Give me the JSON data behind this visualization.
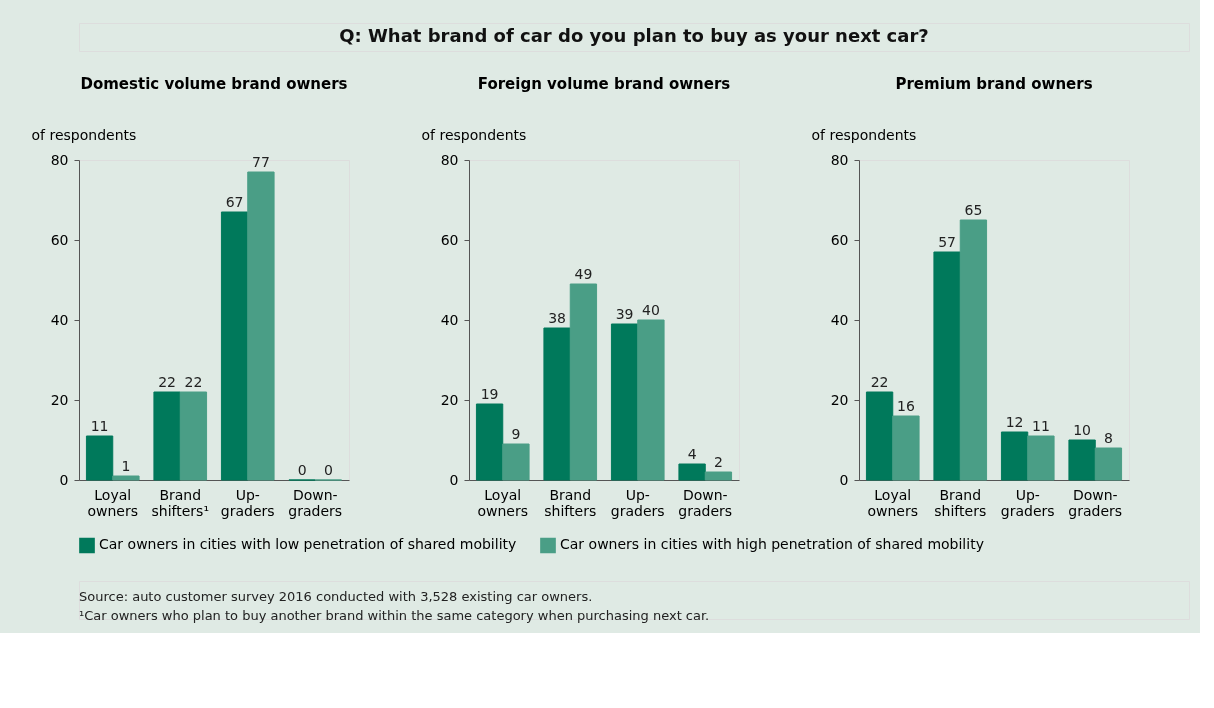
{
  "chart_data": [
    {
      "type": "other",
      "title": "Q: What brand of car do you plan to buy as your next car?"
    },
    {
      "type": "bar",
      "title": "Domestic volume brand owners",
      "ylabel": "of respondents",
      "categories": [
        "Loyal owners",
        "Brand shifters¹",
        "Up-graders",
        "Down-graders"
      ],
      "series": [
        {
          "name": "Car owners in cities with low penetration of shared mobility",
          "color": "#00795b",
          "values": [
            11,
            22,
            67,
            0
          ]
        },
        {
          "name": "Car owners in cities with high penetration of shared mobility",
          "color": "#4a9e86",
          "values": [
            1,
            22,
            77,
            0
          ]
        }
      ],
      "ylim": [
        0,
        80
      ],
      "yticks": [
        0,
        20,
        40,
        60,
        80
      ],
      "grid": false,
      "data_labels": true,
      "legend": "bottom"
    },
    {
      "type": "bar",
      "title": "Foreign volume brand owners",
      "ylabel": "of respondents",
      "categories": [
        "Loyal owners",
        "Brand shifters",
        "Up-graders",
        "Down-graders"
      ],
      "series": [
        {
          "name": "Car owners in cities with low penetration of shared mobility",
          "color": "#00795b",
          "values": [
            19,
            38,
            39,
            4
          ]
        },
        {
          "name": "Car owners in cities with high penetration of shared mobility",
          "color": "#4a9e86",
          "values": [
            9,
            49,
            40,
            2
          ]
        }
      ],
      "ylim": [
        0,
        80
      ],
      "yticks": [
        0,
        20,
        40,
        60,
        80
      ],
      "grid": false,
      "data_labels": true
    },
    {
      "type": "bar",
      "title": "Premium brand owners",
      "ylabel": "of respondents",
      "categories": [
        "Loyal owners",
        "Brand shifters",
        "Up-graders",
        "Down-graders"
      ],
      "series": [
        {
          "name": "Car owners in cities with low penetration of shared mobility",
          "color": "#00795b",
          "values": [
            22,
            57,
            12,
            10
          ]
        },
        {
          "name": "Car owners in cities with high penetration of shared mobility",
          "color": "#4a9e86",
          "values": [
            16,
            65,
            11,
            8
          ]
        }
      ],
      "ylim": [
        0,
        80
      ],
      "yticks": [
        0,
        20,
        40,
        60,
        80
      ],
      "grid": false,
      "data_labels": true
    },
    {
      "type": "other",
      "annotations": [
        "Source: auto customer survey 2016 conducted with 3,528 existing car owners.",
        "¹Car owners who plan to buy another brand within the same category when purchasing next car."
      ]
    }
  ]
}
